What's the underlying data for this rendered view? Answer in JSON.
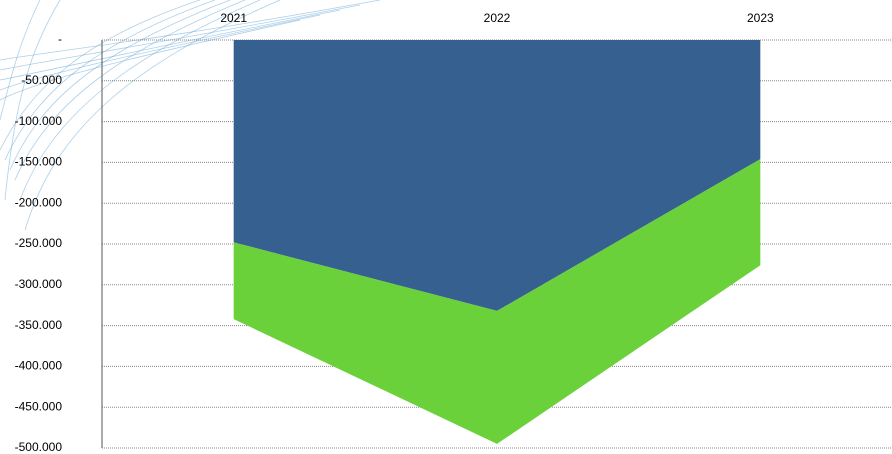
{
  "chart_data": {
    "type": "stacked-area",
    "categories": [
      "2021",
      "2022",
      "2023"
    ],
    "series": [
      {
        "color": "#36608f",
        "values": [
          -248000,
          -332000,
          -146000
        ]
      },
      {
        "color": "#6ad13a",
        "values": [
          -94000,
          -163000,
          -130000
        ]
      }
    ],
    "ylim": [
      0,
      -500000
    ],
    "yticks": [
      {
        "value": 0,
        "label": "-"
      },
      {
        "value": -50000,
        "label": "-50.000"
      },
      {
        "value": -100000,
        "label": "-100.000"
      },
      {
        "value": -150000,
        "label": "-150.000"
      },
      {
        "value": -200000,
        "label": "-200.000"
      },
      {
        "value": -250000,
        "label": "-250.000"
      },
      {
        "value": -300000,
        "label": "-300.000"
      },
      {
        "value": -350000,
        "label": "-350.000"
      },
      {
        "value": -400000,
        "label": "-400.000"
      },
      {
        "value": -450000,
        "label": "-450.000"
      },
      {
        "value": -500000,
        "label": "-500.000"
      }
    ],
    "grid": true
  }
}
